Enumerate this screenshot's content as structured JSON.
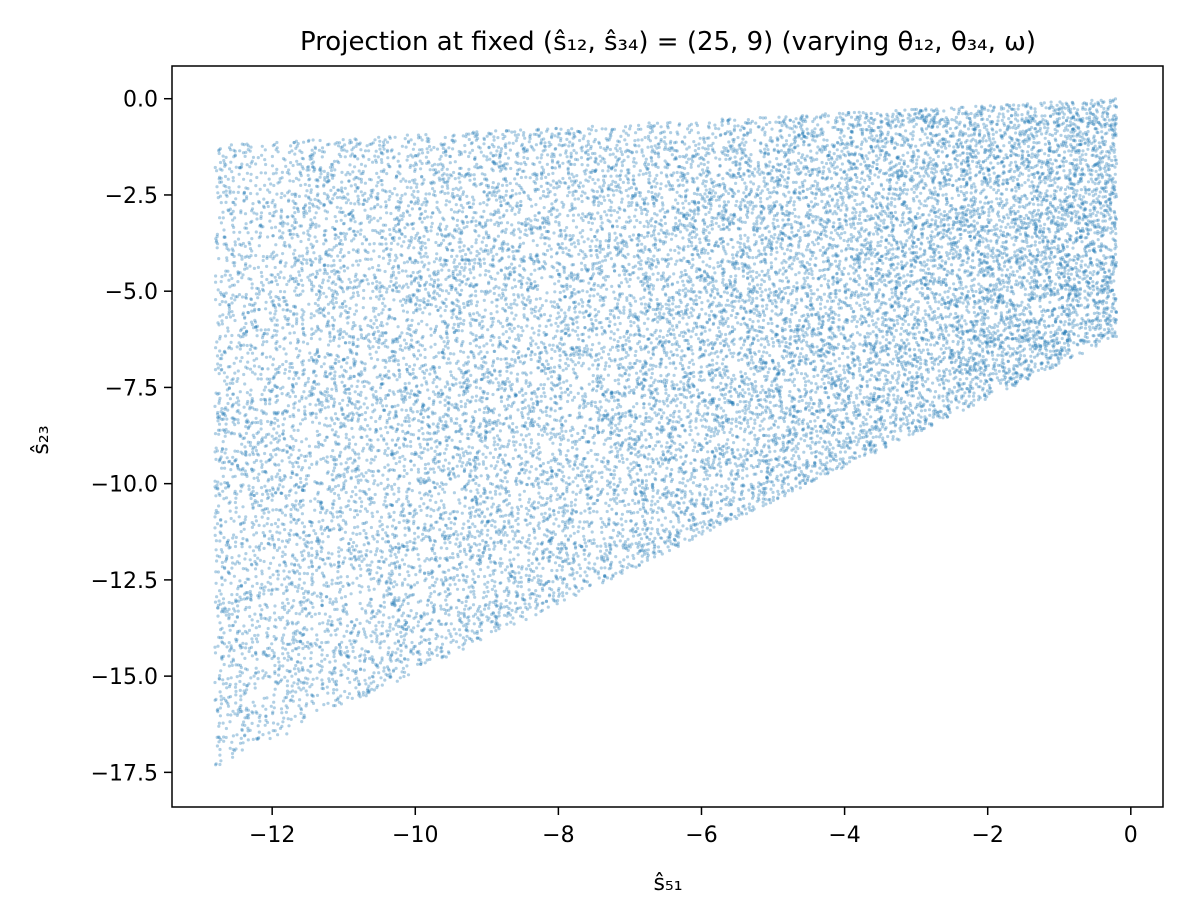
{
  "chart_data": {
    "type": "scatter",
    "title": "Projection at fixed (ŝ₁₂, ŝ₃₄) = (25, 9) (varying θ₁₂, θ₃₄, ω)",
    "xlabel": "ŝ₅₁",
    "ylabel": "ŝ₂₃",
    "xlim": [
      -13.4,
      0.45
    ],
    "ylim": [
      -18.4,
      0.85
    ],
    "x_ticks": [
      -12,
      -10,
      -8,
      -6,
      -4,
      -2,
      0
    ],
    "x_tick_labels": [
      "−12",
      "−10",
      "−8",
      "−6",
      "−4",
      "−2",
      "0"
    ],
    "y_ticks": [
      0.0,
      -2.5,
      -5.0,
      -7.5,
      -10.0,
      -12.5,
      -15.0,
      -17.5
    ],
    "y_tick_labels": [
      "0.0",
      "−2.5",
      "−5.0",
      "−7.5",
      "−10.0",
      "−12.5",
      "−15.0",
      "−17.5"
    ],
    "grid": false,
    "legend": "none",
    "point_color": "#1f77b4",
    "point_alpha": 0.35,
    "region": {
      "description_points": [
        {
          "x": -12.8,
          "y_top": -1.2,
          "y_bottom": -17.4
        },
        {
          "x": -0.2,
          "y_top": 0.0,
          "y_bottom": -6.2
        }
      ]
    },
    "series": [
      {
        "x_range": [
          -12.8,
          -0.2
        ],
        "y_top_at_xmin": -1.2,
        "y_top_at_xmax": 0.0,
        "y_bottom_at_xmin": -17.4,
        "y_bottom_at_xmax": -6.2,
        "n_points": 20000
      }
    ]
  }
}
